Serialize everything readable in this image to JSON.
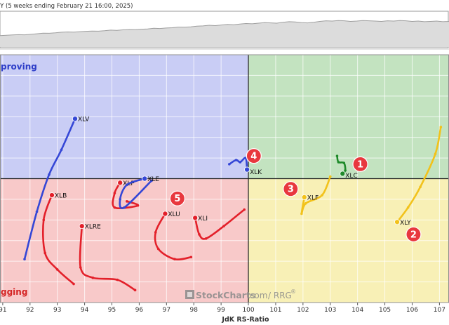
{
  "header": {
    "title_glyph": "Y",
    "subtitle": "(5 weeks ending February 21 16:00, 2025)"
  },
  "quadrants": {
    "improving": "proving",
    "lagging": "gging"
  },
  "watermark": {
    "brand": "StockCharts",
    "domain": ".com",
    "product": "/ RRG",
    "mark": "®"
  },
  "chart_data": {
    "type": "scatter",
    "xlabel": "JdK RS-Ratio",
    "x_ticks": [
      91,
      92,
      93,
      94,
      95,
      96,
      97,
      98,
      99,
      100,
      101,
      102,
      103,
      104,
      105,
      106,
      107
    ],
    "xlim": [
      90.9,
      107.35
    ],
    "ylim": [
      97.0,
      103.0
    ],
    "center": [
      100,
      100
    ],
    "grid": true,
    "colors": {
      "improving": "#c9cdf5",
      "leading": "#c3e3c0",
      "weakening": "#f8f0b6",
      "lagging": "#f8c9c9",
      "red": "#e3202a",
      "blue": "#3547d6",
      "green": "#1f8a2a",
      "yellow": "#f2c21b",
      "marker_fill": "#e8383e"
    },
    "series": [
      {
        "name": "XLV",
        "color": "blue",
        "label_dx": 4,
        "label_dy": 0,
        "points": [
          [
            91.8,
            98.05
          ],
          [
            92.25,
            99.2
          ],
          [
            92.7,
            100.1
          ],
          [
            93.15,
            100.7
          ],
          [
            93.65,
            101.45
          ]
        ]
      },
      {
        "name": "XLB",
        "color": "red",
        "label_dx": 4,
        "label_dy": 0,
        "points": [
          [
            93.6,
            97.45
          ],
          [
            93.0,
            97.8
          ],
          [
            92.55,
            98.2
          ],
          [
            92.5,
            99.0
          ],
          [
            92.8,
            99.6
          ]
        ]
      },
      {
        "name": "XLRE",
        "color": "red",
        "label_dx": 4,
        "label_dy": 0,
        "points": [
          [
            95.85,
            97.3
          ],
          [
            95.2,
            97.55
          ],
          [
            94.3,
            97.6
          ],
          [
            93.85,
            97.85
          ],
          [
            93.9,
            98.85
          ]
        ]
      },
      {
        "name": "XLP",
        "color": "red",
        "label_dx": 4,
        "label_dy": 0,
        "points": [
          [
            95.55,
            99.45
          ],
          [
            95.95,
            99.35
          ],
          [
            95.1,
            99.3
          ],
          [
            95.1,
            99.65
          ],
          [
            95.3,
            99.9
          ]
        ]
      },
      {
        "name": "XLE",
        "color": "blue",
        "label_dx": 4,
        "label_dy": 0,
        "points": [
          [
            96.45,
            99.95
          ],
          [
            95.45,
            99.3
          ],
          [
            95.3,
            99.5
          ],
          [
            95.55,
            99.85
          ],
          [
            96.2,
            100.0
          ]
        ]
      },
      {
        "name": "XLU",
        "color": "red",
        "label_dx": 4,
        "label_dy": 0,
        "points": [
          [
            97.9,
            98.1
          ],
          [
            97.3,
            98.05
          ],
          [
            96.7,
            98.3
          ],
          [
            96.6,
            98.7
          ],
          [
            96.95,
            99.15
          ]
        ]
      },
      {
        "name": "XLI",
        "color": "red",
        "label_dx": 4,
        "label_dy": 0,
        "points": [
          [
            99.85,
            99.25
          ],
          [
            99.1,
            98.85
          ],
          [
            98.45,
            98.55
          ],
          [
            98.2,
            98.65
          ],
          [
            98.05,
            99.05
          ]
        ]
      },
      {
        "name": "XLK",
        "color": "blue",
        "label_dx": 4,
        "label_dy": 3,
        "points": [
          [
            99.3,
            100.35
          ],
          [
            99.55,
            100.45
          ],
          [
            99.7,
            100.4
          ],
          [
            99.9,
            100.5
          ],
          [
            99.95,
            100.22
          ]
        ]
      },
      {
        "name": "XLC",
        "color": "green",
        "label_dx": 4,
        "label_dy": 2,
        "points": [
          [
            103.25,
            100.55
          ],
          [
            103.3,
            100.4
          ],
          [
            103.5,
            100.38
          ],
          [
            103.55,
            100.2
          ],
          [
            103.45,
            100.12
          ]
        ]
      },
      {
        "name": "XLF",
        "color": "yellow",
        "label_dx": 4,
        "label_dy": 0,
        "points": [
          [
            103.0,
            100.05
          ],
          [
            102.7,
            99.6
          ],
          [
            102.1,
            99.4
          ],
          [
            101.95,
            99.15
          ],
          [
            102.05,
            99.55
          ]
        ]
      },
      {
        "name": "XLY",
        "color": "yellow",
        "label_dx": 4,
        "label_dy": 0,
        "points": [
          [
            107.05,
            101.25
          ],
          [
            106.85,
            100.6
          ],
          [
            106.3,
            99.8
          ],
          [
            105.85,
            99.3
          ],
          [
            105.45,
            98.95
          ]
        ]
      }
    ],
    "markers": [
      {
        "label": "1",
        "x": 104.1,
        "y": 100.35
      },
      {
        "label": "2",
        "x": 106.05,
        "y": 98.65
      },
      {
        "label": "3",
        "x": 101.55,
        "y": 99.75
      },
      {
        "label": "4",
        "x": 100.2,
        "y": 100.55
      },
      {
        "label": "5",
        "x": 97.4,
        "y": 99.52
      }
    ],
    "price_line": [
      0.38,
      0.39,
      0.4,
      0.41,
      0.405,
      0.42,
      0.44,
      0.46,
      0.455,
      0.47,
      0.49,
      0.5,
      0.495,
      0.51,
      0.52,
      0.53,
      0.525,
      0.54,
      0.56,
      0.55,
      0.57,
      0.58,
      0.575,
      0.59,
      0.6,
      0.62,
      0.615,
      0.63,
      0.64,
      0.66,
      0.655,
      0.67,
      0.69,
      0.7,
      0.72,
      0.71,
      0.73,
      0.75,
      0.74,
      0.76,
      0.78,
      0.77,
      0.79,
      0.81,
      0.8,
      0.79,
      0.82,
      0.84,
      0.83,
      0.81,
      0.8,
      0.82,
      0.85,
      0.87,
      0.86,
      0.88,
      0.87,
      0.85,
      0.86,
      0.88,
      0.87,
      0.86,
      0.85,
      0.87,
      0.86,
      0.88,
      0.87,
      0.85,
      0.86,
      0.84,
      0.85,
      0.86,
      0.84,
      0.85
    ]
  }
}
